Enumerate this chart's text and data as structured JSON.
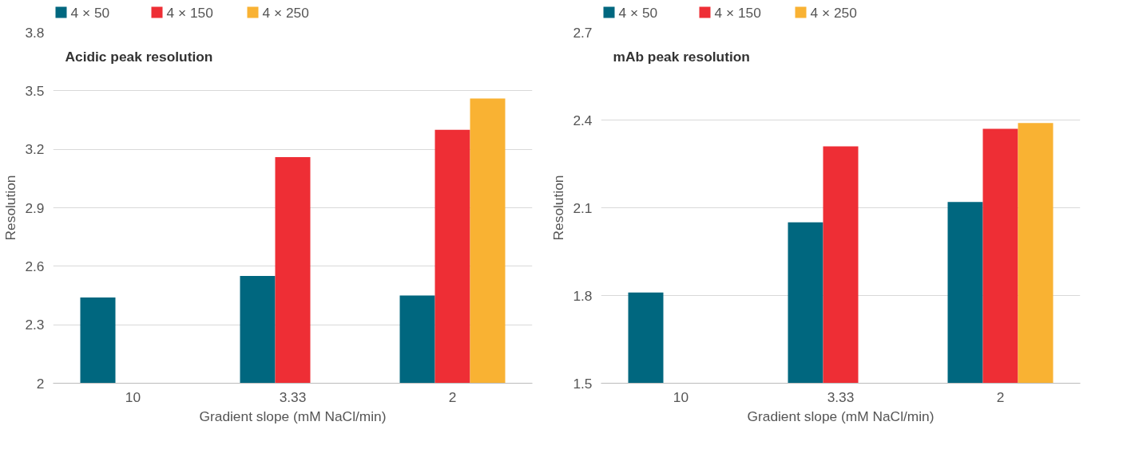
{
  "chart_data": [
    {
      "type": "bar",
      "title": "Acidic peak resolution",
      "xlabel": "Gradient slope (mM NaCl/min)",
      "ylabel": "Resolution",
      "categories": [
        "10",
        "3.33",
        "2"
      ],
      "series": [
        {
          "name": "4 × 50",
          "color": "#00677f",
          "values": [
            2.44,
            2.55,
            2.45
          ]
        },
        {
          "name": "4 × 150",
          "color": "#ee2e35",
          "values": [
            null,
            3.16,
            3.3
          ]
        },
        {
          "name": "4 × 250",
          "color": "#f9b233",
          "values": [
            null,
            null,
            3.46
          ]
        }
      ],
      "ylim": [
        2,
        3.8
      ],
      "yticks": [
        2,
        2.3,
        2.6,
        2.9,
        3.2,
        3.5,
        3.8
      ],
      "grid": "y",
      "legend": "top"
    },
    {
      "type": "bar",
      "title": "mAb peak resolution",
      "xlabel": "Gradient slope (mM NaCl/min)",
      "ylabel": "Resolution",
      "categories": [
        "10",
        "3.33",
        "2"
      ],
      "series": [
        {
          "name": "4 × 50",
          "color": "#00677f",
          "values": [
            1.81,
            2.05,
            2.12
          ]
        },
        {
          "name": "4 × 150",
          "color": "#ee2e35",
          "values": [
            null,
            2.31,
            2.37
          ]
        },
        {
          "name": "4 × 250",
          "color": "#f9b233",
          "values": [
            null,
            null,
            2.39
          ]
        }
      ],
      "ylim": [
        1.5,
        2.7
      ],
      "yticks": [
        1.5,
        1.8,
        2.1,
        2.4,
        2.7
      ],
      "grid": "y",
      "legend": "top"
    }
  ]
}
